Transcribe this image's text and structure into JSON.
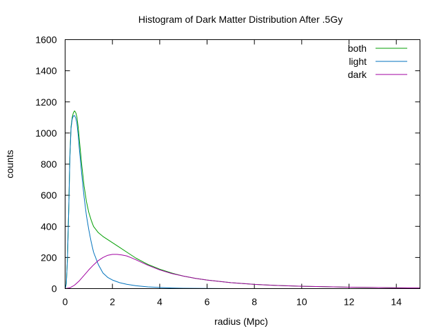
{
  "chart_data": {
    "type": "line",
    "title": "Histogram of Dark Matter Distribution After .5Gy",
    "xlabel": "radius (Mpc)",
    "ylabel": "counts",
    "xlim": [
      0,
      15
    ],
    "ylim": [
      0,
      1600
    ],
    "xticks": [
      0,
      2,
      4,
      6,
      8,
      10,
      12,
      14
    ],
    "yticks": [
      0,
      200,
      400,
      600,
      800,
      1000,
      1200,
      1400,
      1600
    ],
    "grid": false,
    "legend_position": "top-right",
    "series": [
      {
        "name": "both",
        "color": "#009e00",
        "x": [
          0,
          0.05,
          0.1,
          0.15,
          0.2,
          0.25,
          0.3,
          0.35,
          0.4,
          0.45,
          0.5,
          0.55,
          0.6,
          0.7,
          0.8,
          0.9,
          1.0,
          1.1,
          1.2,
          1.4,
          1.6,
          1.8,
          2.0,
          2.3,
          2.6,
          3.0,
          3.5,
          4.0,
          4.5,
          5.0,
          5.5,
          6.0,
          7.0,
          8.0,
          9.0,
          10.0,
          11.0,
          12.0,
          13.0,
          14.0,
          15.0
        ],
        "values": [
          0,
          30,
          200,
          500,
          850,
          1040,
          1100,
          1130,
          1142,
          1130,
          1100,
          1040,
          960,
          800,
          660,
          560,
          490,
          440,
          400,
          360,
          335,
          315,
          295,
          265,
          235,
          195,
          155,
          125,
          100,
          80,
          66,
          55,
          38,
          27,
          20,
          15,
          12,
          9,
          7,
          5,
          4
        ]
      },
      {
        "name": "light",
        "color": "#0072bd",
        "x": [
          0,
          0.05,
          0.1,
          0.15,
          0.2,
          0.25,
          0.3,
          0.35,
          0.4,
          0.45,
          0.5,
          0.55,
          0.6,
          0.7,
          0.8,
          0.9,
          1.0,
          1.1,
          1.2,
          1.4,
          1.6,
          1.8,
          2.0,
          2.3,
          2.6,
          3.0,
          3.5,
          4.0,
          4.5,
          5.0,
          6.0,
          7.0
        ],
        "values": [
          0,
          30,
          200,
          500,
          840,
          1030,
          1090,
          1110,
          1112,
          1095,
          1060,
          990,
          900,
          740,
          590,
          470,
          380,
          300,
          235,
          155,
          100,
          72,
          55,
          38,
          28,
          18,
          11,
          7,
          4,
          2,
          1,
          0
        ]
      },
      {
        "name": "dark",
        "color": "#a000a0",
        "x": [
          0,
          0.2,
          0.4,
          0.6,
          0.8,
          1.0,
          1.2,
          1.4,
          1.6,
          1.8,
          2.0,
          2.2,
          2.4,
          2.6,
          2.8,
          3.0,
          3.5,
          4.0,
          4.5,
          5.0,
          5.5,
          6.0,
          7.0,
          8.0,
          9.0,
          10.0,
          11.0,
          12.0,
          13.0,
          14.0,
          15.0
        ],
        "values": [
          0,
          5,
          22,
          50,
          85,
          120,
          152,
          180,
          200,
          214,
          220,
          220,
          216,
          210,
          198,
          185,
          150,
          120,
          97,
          80,
          66,
          55,
          38,
          27,
          20,
          15,
          12,
          9,
          7,
          5,
          4
        ]
      }
    ]
  }
}
